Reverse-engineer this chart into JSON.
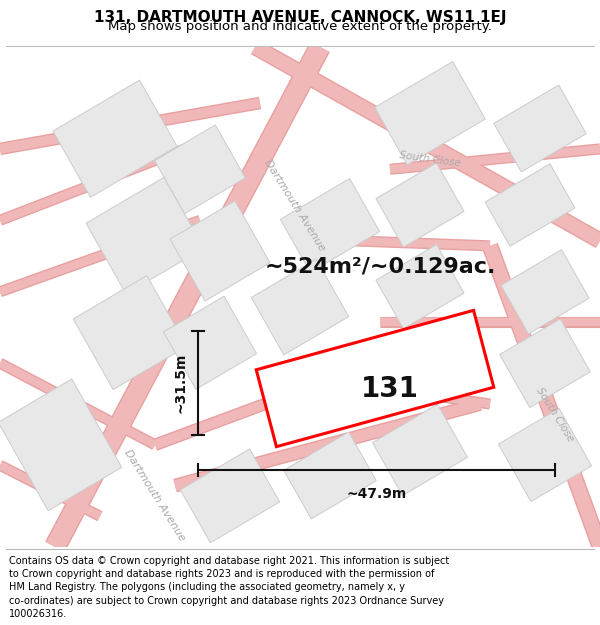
{
  "title_line1": "131, DARTMOUTH AVENUE, CANNOCK, WS11 1EJ",
  "title_line2": "Map shows position and indicative extent of the property.",
  "footer_lines": [
    "Contains OS data © Crown copyright and database right 2021. This information is subject",
    "to Crown copyright and database rights 2023 and is reproduced with the permission of",
    "HM Land Registry. The polygons (including the associated geometry, namely x, y",
    "co-ordinates) are subject to Crown copyright and database rights 2023 Ordnance Survey",
    "100026316."
  ],
  "area_label": "~524m²/~0.129ac.",
  "number_label": "131",
  "width_label": "~47.9m",
  "height_label": "~31.5m",
  "map_bg": "#ffffff",
  "road_color": "#f0b8b8",
  "road_outline": "#e8a0a0",
  "building_fill": "#e8e8e8",
  "building_edge": "#cccccc",
  "plot_fill": "#ffffff",
  "plot_edge": "#ff0000",
  "plot_linewidth": 2.2,
  "dim_color": "#111111",
  "road_label_color": "#aaaaaa",
  "title_fontsize": 11,
  "subtitle_fontsize": 9.5,
  "footer_fontsize": 7.0,
  "area_fontsize": 16,
  "number_fontsize": 20,
  "dim_fontsize": 10,
  "road_label_fontsize": 8
}
